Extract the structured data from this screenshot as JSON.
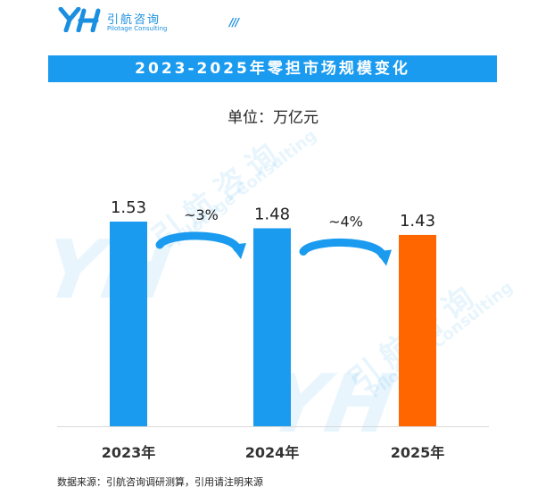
{
  "header": {
    "logo_cn": "引航咨询",
    "logo_en": "Pilotage Consulting",
    "logo_mark": "YH",
    "dashes": "///",
    "brand_color": "#1a8fe0"
  },
  "watermark": {
    "cn": "引航咨询",
    "en": "Pilotage Consulting",
    "mark": "YH"
  },
  "chart_data": {
    "type": "bar",
    "title": "2023-2025年零担市场规模变化",
    "subtitle": "单位：万亿元",
    "categories": [
      "2023年",
      "2024年",
      "2025年"
    ],
    "values": [
      1.53,
      1.48,
      1.43
    ],
    "value_labels": [
      "1.53",
      "1.48",
      "1.43"
    ],
    "bar_colors": [
      "#1a9bef",
      "#1a9bef",
      "#ff6600"
    ],
    "ylim": [
      0,
      1.65
    ],
    "grid": false,
    "annotations": [
      {
        "text": "~3%",
        "between": [
          0,
          1
        ],
        "color": "#1a9bef"
      },
      {
        "text": "~4%",
        "between": [
          1,
          2
        ],
        "color": "#1a9bef"
      }
    ]
  },
  "footer": {
    "source": "数据来源：引航咨询调研测算，引用请注明来源"
  }
}
